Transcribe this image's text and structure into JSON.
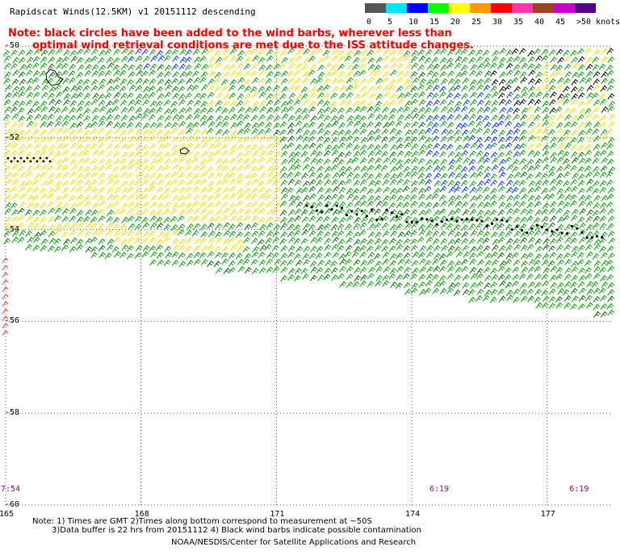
{
  "title": "Rapidscat Winds(12.5KM) v1 20151112 descending",
  "note": {
    "line1": "Note: black circles have been added to the wind barbs, wherever less than",
    "line2": "optimal wind retrieval conditions are met due to the ISS attitude changes."
  },
  "speed_scale": {
    "unit_label": ">50 knots",
    "ticks": [
      "0",
      "5",
      "10",
      "15",
      "20",
      "25",
      "30",
      "35",
      "40",
      "45"
    ],
    "colors": [
      "#555555",
      "#00e5ff",
      "#0000ff",
      "#00ff00",
      "#ffff00",
      "#ff9900",
      "#ff0000",
      "#ff33aa",
      "#994422",
      "#cc00cc",
      "#550088"
    ]
  },
  "map": {
    "longitudes": [
      "165",
      "168",
      "171",
      "174",
      "177"
    ],
    "latitudes": [
      "-50",
      "-52",
      "-54",
      "-56",
      "-58",
      "-60"
    ],
    "time_labels": [
      {
        "text": "7:54",
        "lon": 165.0
      },
      {
        "text": "6:19",
        "lon": 174.5
      },
      {
        "text": "6:19",
        "lon": 177.6
      }
    ],
    "wind_colors": {
      "green": "#00a000",
      "dark_green": "#006600",
      "yellow": "#f2e000",
      "blue": "#0033ff",
      "black": "#000000",
      "red": "#ff3333"
    }
  },
  "footnote": {
    "line1": "Note: 1) Times are GMT 2)Times along bottom correspond to measurement at ~50S",
    "line2": "3)Data buffer is 22 hrs from 20151112 4) Black wind barbs indicate possible contamination"
  },
  "credit": "NOAA/NESDIS/Center for Satellite Applications and Research"
}
